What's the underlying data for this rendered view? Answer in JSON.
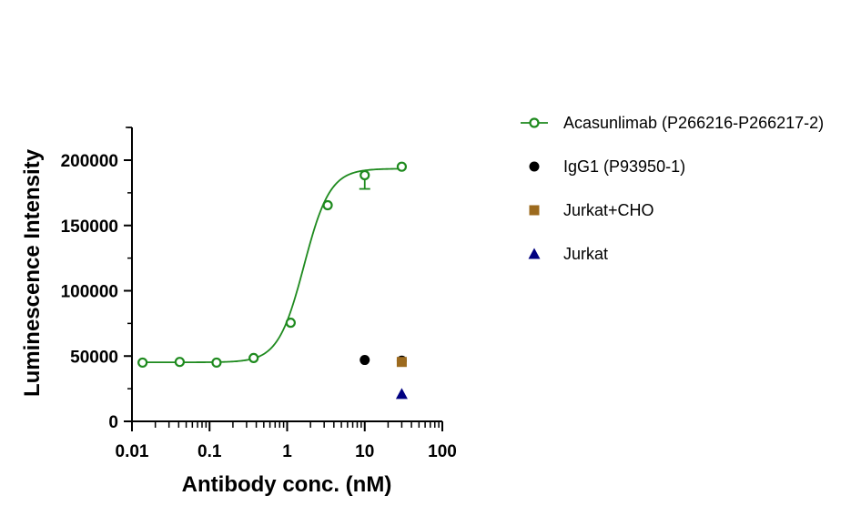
{
  "chart_data": {
    "type": "scatter",
    "xlabel": "Antibody conc. (nM)",
    "ylabel": "Luminescence Intensity",
    "x_scale": "log",
    "xlim": [
      0.01,
      100
    ],
    "ylim": [
      0,
      220000
    ],
    "x_ticks": [
      "0.01",
      "0.1",
      "1",
      "10",
      "100"
    ],
    "y_ticks": [
      "0",
      "50000",
      "100000",
      "150000",
      "200000"
    ],
    "legend_position": "right",
    "series": [
      {
        "name": "Acasunlimab (P266216-P266217-2)",
        "color": "#1e8a1e",
        "marker": "open-circle",
        "fit": "4PL",
        "x": [
          0.0137,
          0.0412,
          0.123,
          0.37,
          1.11,
          3.33,
          10,
          30
        ],
        "y": [
          45000,
          45500,
          45000,
          48500,
          75500,
          165500,
          188500,
          195000
        ],
        "error_low": [
          null,
          null,
          null,
          null,
          null,
          null,
          178000,
          null
        ]
      },
      {
        "name": "IgG1 (P93950-1)",
        "color": "#000000",
        "marker": "filled-circle",
        "x": [
          10,
          30
        ],
        "y": [
          47000,
          46500
        ]
      },
      {
        "name": "Jurkat+CHO",
        "color": "#9c6a1e",
        "marker": "square",
        "x": [
          30
        ],
        "y": [
          45500
        ]
      },
      {
        "name": "Jurkat",
        "color": "#000080",
        "marker": "triangle",
        "x": [
          30
        ],
        "y": [
          21000
        ]
      }
    ]
  }
}
